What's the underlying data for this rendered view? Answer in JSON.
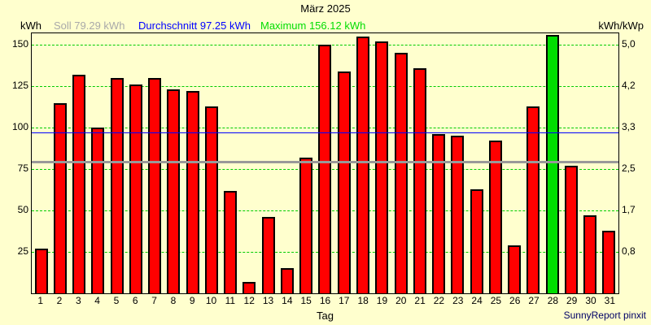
{
  "title": "März 2025",
  "header": {
    "left_axis_unit": "kWh",
    "right_axis_unit": "kWh/kWp",
    "legend": {
      "soll_label": "Soll 79.29 kWh",
      "durchschnitt_label": "Durchschnitt 97.25 kWh",
      "maximum_label": "Maximum 156.12 kWh"
    }
  },
  "footer": {
    "xlabel": "Tag",
    "brand": "SunnyReport pinxit"
  },
  "colors": {
    "background": "#ffffce",
    "bar_fill": "#ff0000",
    "bar_border": "#000000",
    "max_bar_fill": "#00dd00",
    "gridline": "#00cc00",
    "soll_line": "#999999",
    "durchschnitt_line": "#0000ff",
    "soll_text": "#a9a9a9",
    "durchschnitt_text": "#0000ff",
    "maximum_text": "#00dd00",
    "brand_text": "#000066"
  },
  "chart_data": {
    "type": "bar",
    "title": "März 2025",
    "xlabel": "Tag",
    "ylabel_left": "kWh",
    "ylabel_right": "kWh/kWp",
    "grid": true,
    "legend_position": "top",
    "categories": [
      1,
      2,
      3,
      4,
      5,
      6,
      7,
      8,
      9,
      10,
      11,
      12,
      13,
      14,
      15,
      16,
      17,
      18,
      19,
      20,
      21,
      22,
      23,
      24,
      25,
      26,
      27,
      28,
      29,
      30,
      31
    ],
    "values": [
      27,
      115,
      132,
      100,
      130,
      126,
      130,
      123,
      122,
      113,
      62,
      7,
      46,
      15,
      82,
      150,
      134,
      155,
      152,
      145,
      136,
      96,
      95,
      63,
      92,
      29,
      113,
      156.12,
      77,
      47,
      38
    ],
    "max_day": 28,
    "soll_kwh": 79.29,
    "durchschnitt_kwh": 97.25,
    "maximum_kwh": 156.12,
    "ylim": [
      0,
      157
    ],
    "y_ticks_left": [
      25,
      50,
      75,
      100,
      125,
      150
    ],
    "y_ticks_right": [
      "0,8",
      "1,7",
      "2,5",
      "3,3",
      "4,2",
      "5,0"
    ]
  }
}
